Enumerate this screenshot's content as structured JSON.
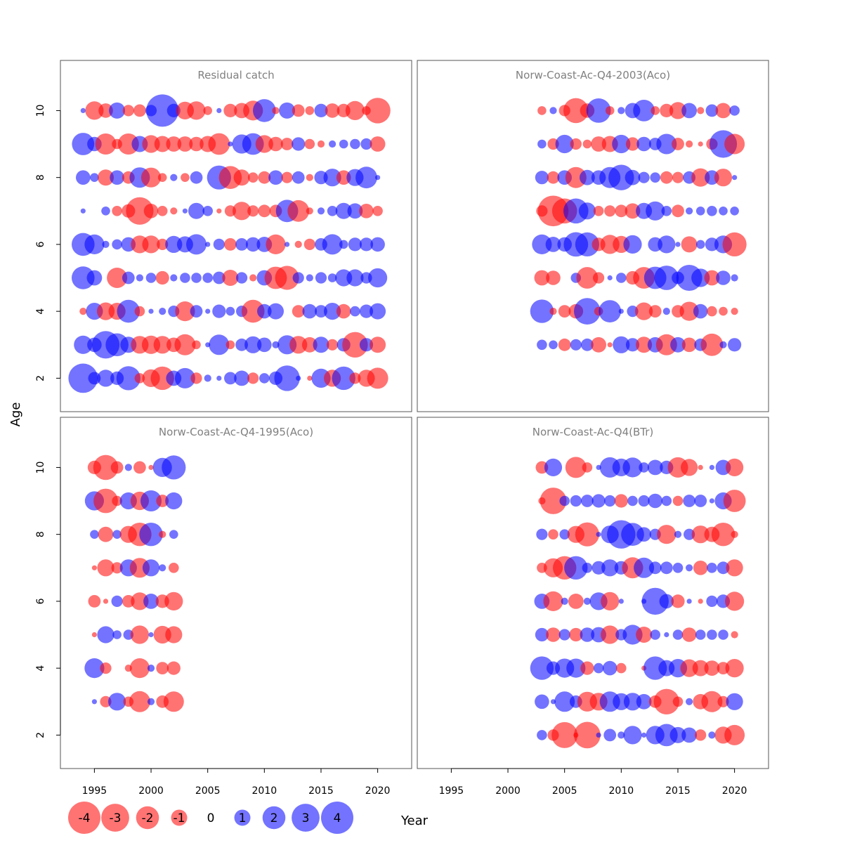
{
  "chart_data": {
    "type": "scatter",
    "encoding": "bubble residuals: blue = positive, red = negative, area proportional to |value|",
    "xlabel": "Year",
    "ylabel": "Age",
    "xlim": [
      1992,
      2023
    ],
    "ylim": [
      1,
      11.5
    ],
    "x_ticks": [
      1995,
      2000,
      2005,
      2010,
      2015,
      2020
    ],
    "y_ticks": [
      2,
      4,
      6,
      8,
      10
    ],
    "colors": {
      "positive": "#0000ff",
      "negative": "#ff0000",
      "opacity": 0.55
    },
    "legend": {
      "values": [
        -4,
        -3,
        -2,
        -1,
        0,
        1,
        2,
        3,
        4
      ],
      "labels": [
        "-4",
        "-3",
        "-2",
        "-1",
        "0",
        "1",
        "2",
        "3",
        "4"
      ]
    },
    "panels": [
      {
        "title": "Residual catch",
        "ages": {
          "10": {
            "start": 1994,
            "values": [
              0.1,
              -1.3,
              -0.8,
              1.0,
              -0.5,
              -0.6,
              0.5,
              4.0,
              0.7,
              -1.2,
              -1.3,
              -0.3,
              0.1,
              -0.7,
              -0.9,
              -1.5,
              2.0,
              -0.2,
              1.0,
              -0.6,
              -0.3,
              0.7,
              -0.8,
              -0.7,
              -1.4,
              -0.3,
              -2.5
            ]
          },
          "9": {
            "start": 1994,
            "values": [
              1.9,
              0.8,
              -1.7,
              -0.4,
              -1.7,
              1.0,
              -1.2,
              -1.0,
              -0.9,
              -0.9,
              -0.8,
              -1.0,
              -1.8,
              0.1,
              1.4,
              1.8,
              -1.2,
              -0.8,
              -0.6,
              0.7,
              -0.4,
              -0.2,
              0.2,
              0.3,
              0.4,
              0.5,
              -0.9
            ]
          },
          "8": {
            "start": 1994,
            "values": [
              0.8,
              0.3,
              -1.0,
              0.8,
              -0.6,
              1.6,
              -1.5,
              -0.3,
              0.2,
              -0.3,
              0.6,
              0.0,
              2.2,
              -2.0,
              -1.0,
              -0.4,
              -0.6,
              0.8,
              -0.5,
              0.6,
              -0.2,
              0.7,
              1.2,
              -0.8,
              1.1,
              1.8,
              0.1
            ]
          },
          "7": {
            "start": 1994,
            "values": [
              0.1,
              0.0,
              0.3,
              -0.4,
              -0.7,
              -2.9,
              -0.8,
              -0.4,
              -0.2,
              0.1,
              1.0,
              0.4,
              -0.1,
              -0.5,
              -1.3,
              -0.5,
              -0.6,
              -0.6,
              1.9,
              -1.8,
              -0.2,
              0.2,
              0.4,
              1.0,
              0.9,
              -0.8,
              -0.4
            ]
          },
          "6": {
            "start": 1994,
            "values": [
              2.0,
              1.5,
              0.2,
              0.4,
              0.8,
              -1.2,
              -1.2,
              -0.5,
              1.1,
              1.0,
              1.6,
              0.1,
              0.5,
              -0.6,
              0.6,
              0.8,
              0.9,
              -1.5,
              0.1,
              -0.2,
              -0.5,
              0.6,
              1.6,
              0.3,
              0.7,
              0.7,
              0.8
            ]
          },
          "5": {
            "start": 1994,
            "values": [
              2.0,
              0.9,
              0.0,
              -1.6,
              0.6,
              0.2,
              0.4,
              -0.7,
              0.2,
              0.4,
              0.4,
              0.4,
              0.6,
              -1.0,
              0.5,
              -0.2,
              0.9,
              -1.9,
              -2.2,
              0.5,
              0.2,
              0.5,
              0.3,
              1.1,
              1.1,
              0.5,
              1.4
            ]
          },
          "4": {
            "start": 1994,
            "values": [
              -0.2,
              1.1,
              -1.2,
              -1.1,
              2.0,
              -0.4,
              0.1,
              0.2,
              0.5,
              -1.5,
              0.6,
              0.1,
              0.7,
              0.3,
              0.5,
              -2.0,
              0.8,
              1.0,
              0.0,
              -0.6,
              0.8,
              0.6,
              1.1,
              -0.8,
              0.4,
              0.7,
              1.0
            ]
          },
          "3": {
            "start": 1994,
            "values": [
              1.3,
              0.8,
              2.9,
              2.0,
              1.0,
              -1.2,
              -1.3,
              -1.2,
              -0.8,
              -1.7,
              -0.3,
              0.1,
              1.6,
              -0.3,
              0.6,
              1.1,
              0.8,
              0.2,
              1.4,
              -1.2,
              -0.9,
              1.0,
              -0.5,
              0.7,
              -2.5,
              0.7,
              -1.0
            ]
          },
          "2": {
            "start": 1994,
            "values": [
              3.3,
              0.6,
              1.1,
              0.7,
              2.2,
              -0.4,
              -1.2,
              -2.1,
              0.9,
              1.6,
              -0.5,
              0.2,
              0.1,
              0.6,
              0.9,
              -0.5,
              0.4,
              0.7,
              2.5,
              0.1,
              -0.1,
              1.4,
              -1.1,
              2.1,
              -0.5,
              -1.1,
              -1.7
            ]
          }
        }
      },
      {
        "title": "Norw-Coast-Ac-Q4-2003(Aco)",
        "ages": {
          "10": {
            "start": 2003,
            "values": [
              -0.3,
              0.2,
              -0.5,
              -2.4,
              -0.8,
              2.3,
              -0.3,
              0.2,
              0.9,
              1.8,
              -0.3,
              -0.7,
              -1.1,
              0.9,
              -0.2,
              0.6,
              -0.9,
              0.4
            ]
          },
          "9": {
            "start": 2003,
            "values": [
              0.3,
              -0.5,
              1.3,
              -0.5,
              -0.3,
              -0.9,
              -1.0,
              1.3,
              -0.7,
              0.8,
              0.6,
              1.6,
              -0.6,
              -0.2,
              -0.1,
              -0.5,
              2.9,
              -1.6
            ]
          },
          "8": {
            "start": 2003,
            "values": [
              0.7,
              -0.6,
              0.8,
              -1.7,
              0.9,
              0.8,
              1.7,
              2.5,
              0.9,
              0.5,
              0.4,
              -0.6,
              -0.5,
              0.6,
              -1.3,
              0.8,
              -1.2,
              0.1
            ]
          },
          "7": {
            "start": 2003,
            "values": [
              -0.5,
              -3.6,
              -2.4,
              2.4,
              1.1,
              -0.4,
              -0.5,
              -0.6,
              -0.9,
              1.0,
              1.4,
              0.4,
              -0.6,
              0.2,
              0.3,
              0.4,
              0.3,
              0.3
            ]
          },
          "6": {
            "start": 2003,
            "values": [
              1.5,
              0.9,
              0.8,
              2.3,
              2.2,
              -0.7,
              -1.4,
              -1.1,
              1.3,
              0.0,
              0.8,
              1.2,
              0.1,
              -1.0,
              0.3,
              0.7,
              1.2,
              -2.2
            ]
          },
          "5": {
            "start": 2003,
            "values": [
              -0.9,
              -0.8,
              0.0,
              0.4,
              -1.8,
              -0.5,
              0.1,
              0.4,
              -0.7,
              -1.8,
              1.9,
              2.3,
              0.6,
              2.6,
              1.3,
              -0.9,
              0.8,
              0.2
            ]
          },
          "4": {
            "start": 2003,
            "values": [
              2.1,
              -0.2,
              -0.6,
              -0.8,
              2.7,
              -0.3,
              1.9,
              0.1,
              0.5,
              -1.2,
              -0.6,
              0.2,
              -0.6,
              -1.4,
              0.8,
              -0.4,
              -0.3,
              -0.2
            ]
          },
          "3": {
            "start": 2003,
            "values": [
              0.4,
              0.3,
              -0.6,
              0.5,
              0.6,
              -0.9,
              -0.1,
              1.1,
              0.7,
              -1.0,
              0.9,
              -1.7,
              0.9,
              -0.8,
              0.6,
              -1.9,
              0.2,
              0.7
            ]
          }
        }
      },
      {
        "title": "Norw-Coast-Ac-Q4-1995(Aco)",
        "ages": {
          "10": {
            "start": 1995,
            "values": [
              -0.7,
              -2.4,
              -0.6,
              0.2,
              -0.6,
              -0.1,
              1.4,
              2.2
            ]
          },
          "9": {
            "start": 1995,
            "values": [
              1.4,
              -2.3,
              -0.4,
              1.1,
              -1.3,
              1.7,
              -0.6,
              1.1
            ]
          },
          "8": {
            "start": 1995,
            "values": [
              0.3,
              -0.9,
              0.3,
              -1.1,
              -2.1,
              2.1,
              -0.2,
              0.3
            ]
          },
          "7": {
            "start": 1995,
            "values": [
              -0.1,
              -1.1,
              -0.5,
              1.1,
              -1.5,
              1.1,
              0.2,
              -0.4
            ]
          },
          "6": {
            "start": 1995,
            "values": [
              -0.6,
              -0.1,
              0.5,
              -0.6,
              -1.2,
              0.9,
              -0.7,
              -1.3
            ]
          },
          "5": {
            "start": 1995,
            "values": [
              -0.1,
              1.1,
              0.3,
              0.4,
              -1.3,
              0.1,
              -1.2,
              -1.1
            ]
          },
          "4": {
            "start": 1995,
            "values": [
              1.5,
              -0.5,
              0.0,
              -0.2,
              -1.5,
              0.2,
              -0.6,
              -0.7
            ]
          },
          "3": {
            "start": 1995,
            "values": [
              0.1,
              -0.5,
              1.2,
              -0.4,
              -1.7,
              0.2,
              -0.6,
              -1.6
            ]
          }
        }
      },
      {
        "title": "Norw-Coast-Ac-Q4(BTr)",
        "ages": {
          "10": {
            "start": 2003,
            "values": [
              -0.6,
              1.2,
              0.0,
              -1.7,
              -0.4,
              0.1,
              1.6,
              1.2,
              1.5,
              0.4,
              0.9,
              0.7,
              -1.6,
              -1.1,
              -0.1,
              0.1,
              0.9,
              -1.2
            ]
          },
          "9": {
            "start": 2003,
            "values": [
              -0.2,
              -2.7,
              0.4,
              0.5,
              0.6,
              0.7,
              0.5,
              -0.7,
              0.4,
              0.5,
              0.8,
              0.4,
              -0.4,
              0.6,
              0.6,
              0.1,
              1.1,
              -1.9
            ]
          },
          "8": {
            "start": 2003,
            "values": [
              0.5,
              -0.4,
              0.4,
              -1.1,
              -2.2,
              0.1,
              1.2,
              3.1,
              2.0,
              0.8,
              0.5,
              -1.4,
              0.2,
              0.5,
              -1.2,
              -0.9,
              -2.1,
              -0.2
            ]
          },
          "7": {
            "start": 2003,
            "values": [
              -0.4,
              -1.4,
              -2.1,
              2.1,
              0.4,
              0.7,
              1.1,
              0.7,
              -1.7,
              1.6,
              0.6,
              0.6,
              0.4,
              0.2,
              -0.8,
              0.4,
              0.6,
              -1.1
            ]
          },
          "6": {
            "start": 2003,
            "values": [
              0.9,
              -1.5,
              0.2,
              -0.9,
              0.2,
              1.2,
              -1.3,
              0.1,
              0.0,
              0.1,
              2.8,
              0.8,
              -0.7,
              0.1,
              -0.1,
              0.5,
              0.7,
              -1.4
            ]
          },
          "5": {
            "start": 2003,
            "values": [
              0.7,
              -0.8,
              0.5,
              -0.7,
              0.8,
              0.9,
              -1.3,
              0.5,
              1.5,
              -1.0,
              0.4,
              0.1,
              0.4,
              -0.8,
              0.4,
              0.4,
              0.4,
              -0.2
            ]
          },
          "4": {
            "start": 2003,
            "values": [
              2.1,
              0.7,
              1.4,
              1.4,
              -0.7,
              0.4,
              0.8,
              -0.4,
              0.0,
              -0.1,
              2.1,
              1.0,
              1.3,
              -1.2,
              -1.0,
              -0.9,
              -0.6,
              -1.3
            ]
          },
          "3": {
            "start": 2003,
            "values": [
              0.8,
              0.1,
              1.6,
              0.6,
              -1.5,
              -1.2,
              1.6,
              1.1,
              1.2,
              0.9,
              -0.6,
              -2.5,
              -0.4,
              0.2,
              -0.9,
              -1.7,
              -0.5,
              1.1
            ]
          },
          "2": {
            "start": 2003,
            "values": [
              0.4,
              -0.5,
              -2.6,
              -0.1,
              -2.7,
              0.1,
              0.6,
              0.2,
              1.3,
              0.1,
              1.3,
              1.9,
              1.0,
              0.9,
              -0.5,
              0.2,
              -1.1,
              -1.6
            ]
          }
        }
      }
    ]
  }
}
